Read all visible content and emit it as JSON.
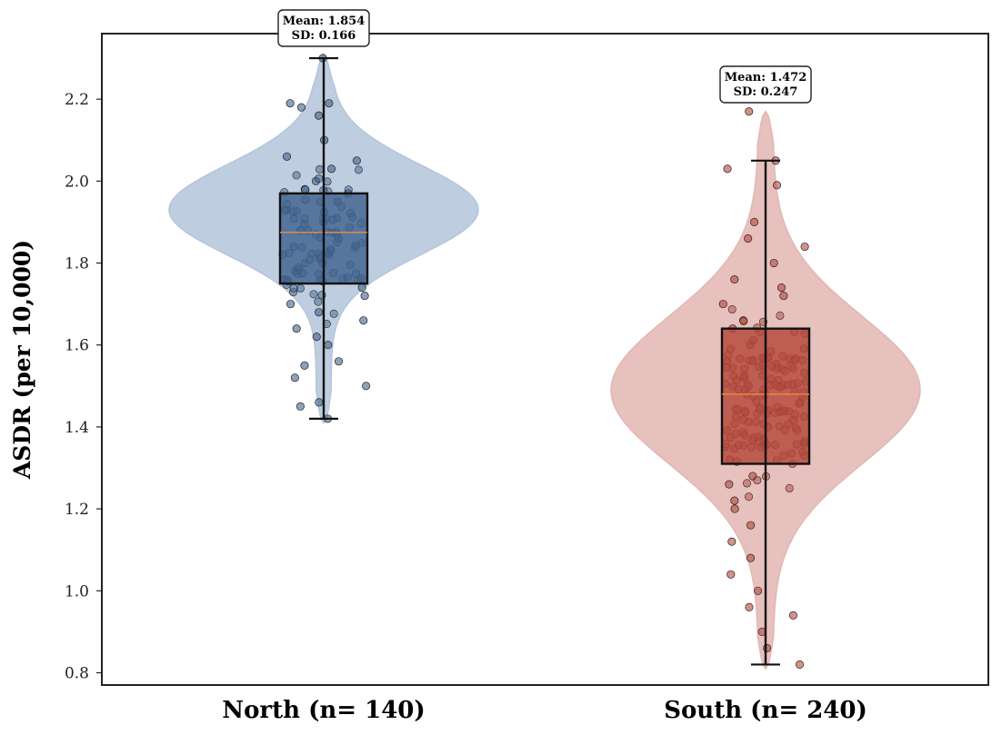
{
  "chart_data": {
    "type": "violin",
    "ylabel": "ASDR (per 10,000)",
    "xlabel": "",
    "ylim": [
      0.77,
      2.36
    ],
    "yticks": [
      "0.8",
      "1.0",
      "1.2",
      "1.4",
      "1.6",
      "1.8",
      "2.0",
      "2.2"
    ],
    "grid": false,
    "categories": [
      "North (n= 140)",
      "South (n= 240)"
    ],
    "groups": [
      {
        "name": "North (n= 140)",
        "n": 140,
        "mean": 1.854,
        "sd": 0.166,
        "annotation": [
          "Mean: 1.854",
          "SD: 0.166"
        ],
        "box": {
          "whisker_low": 1.42,
          "q1": 1.75,
          "median": 1.875,
          "q3": 1.97,
          "whisker_high": 2.3
        },
        "violin": {
          "min": 1.41,
          "max": 2.31,
          "peak": 1.93,
          "spread": 0.11
        },
        "color": "#3f638f",
        "violin_color": "#b3c5da",
        "sample_points": [
          2.3,
          2.19,
          2.19,
          2.18,
          2.16,
          2.1,
          2.06,
          2.05,
          2.03,
          2.0,
          1.98,
          1.97,
          1.95,
          1.93,
          1.9,
          1.88,
          1.86,
          1.84,
          1.82,
          1.8,
          1.78,
          1.76,
          1.74,
          1.72,
          1.7,
          1.68,
          1.66,
          1.64,
          1.62,
          1.6,
          1.56,
          1.55,
          1.52,
          1.5,
          1.46,
          1.45,
          1.42
        ]
      },
      {
        "name": "South (n= 240)",
        "n": 240,
        "mean": 1.472,
        "sd": 0.247,
        "annotation": [
          "Mean: 1.472",
          "SD: 0.247"
        ],
        "box": {
          "whisker_low": 0.82,
          "q1": 1.31,
          "median": 1.48,
          "q3": 1.64,
          "whisker_high": 2.05
        },
        "violin": {
          "min": 0.81,
          "max": 2.17,
          "peak": 1.49,
          "spread": 0.18
        },
        "color": "#b5473a",
        "violin_color": "#e3b6b3",
        "sample_points": [
          2.17,
          2.05,
          2.03,
          1.99,
          1.9,
          1.86,
          1.84,
          1.8,
          1.76,
          1.74,
          1.72,
          1.7,
          1.66,
          1.64,
          1.6,
          1.56,
          1.52,
          1.48,
          1.44,
          1.4,
          1.36,
          1.32,
          1.28,
          1.26,
          1.22,
          1.2,
          1.16,
          1.12,
          1.08,
          1.04,
          1.0,
          0.96,
          0.94,
          0.9,
          0.86,
          0.82
        ]
      }
    ]
  }
}
